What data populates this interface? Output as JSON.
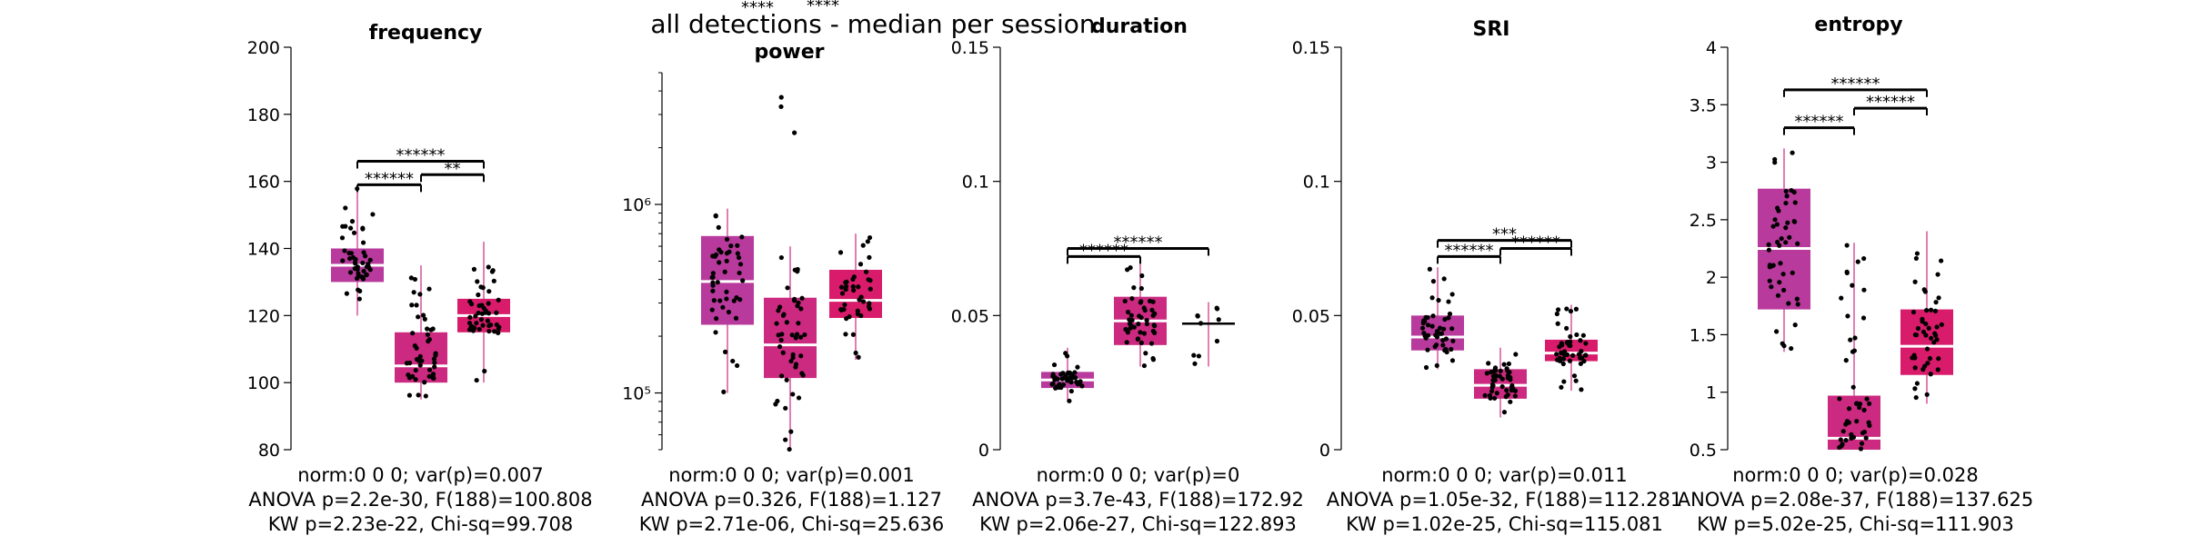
{
  "figure": {
    "suptitle": "all detections - median per session",
    "top_stray_labels": [
      "****",
      "****"
    ]
  },
  "colors": {
    "box_1": "#b83a9c",
    "box_2": "#cb2a80",
    "box_3": "#d81b6a",
    "median_line": "#ffffff",
    "whisker": "#cb2a80",
    "points": "#000000",
    "significance_bar": "#000000"
  },
  "chart_data": [
    {
      "type": "box",
      "title": "frequency",
      "yscale": "linear",
      "ylim": [
        80,
        200
      ],
      "yticks": [
        80,
        100,
        120,
        140,
        160,
        180,
        200
      ],
      "ytick_labels": [
        "80",
        "100",
        "120",
        "140",
        "160",
        "180",
        "200"
      ],
      "boxes": [
        {
          "q1": 130,
          "median": 135,
          "q3": 140,
          "whisker_low": 120,
          "whisker_high": 158,
          "n_points": 46
        },
        {
          "q1": 100,
          "median": 105,
          "q3": 115,
          "whisker_low": 95,
          "whisker_high": 135,
          "n_points": 46
        },
        {
          "q1": 115,
          "median": 120,
          "q3": 125,
          "whisker_low": 100,
          "whisker_high": 142,
          "n_points": 46
        }
      ],
      "significance": [
        {
          "from": 0,
          "to": 1,
          "label": "******",
          "y": 159
        },
        {
          "from": 0,
          "to": 2,
          "label": "******",
          "y": 166
        },
        {
          "from": 1,
          "to": 2,
          "label": "**",
          "y": 162
        }
      ],
      "stats": [
        "norm:0  0  0; var(p)=0.007",
        "ANOVA p=2.2e-30, F(188)=100.808",
        "KW p=2.23e-22, Chi-sq=99.708"
      ]
    },
    {
      "type": "box",
      "title": "power",
      "yscale": "log",
      "ylim": [
        50000,
        5000000
      ],
      "yticks": [
        100000,
        1000000
      ],
      "ytick_labels": [
        "10⁵",
        "10⁶"
      ],
      "boxes": [
        {
          "q1": 230000,
          "median": 390000,
          "q3": 680000,
          "whisker_low": 100000,
          "whisker_high": 950000,
          "n_points": 46
        },
        {
          "q1": 120000,
          "median": 180000,
          "q3": 320000,
          "whisker_low": 50000,
          "whisker_high": 600000,
          "n_points": 46,
          "outliers": [
            2400000,
            3300000,
            3700000
          ]
        },
        {
          "q1": 250000,
          "median": 310000,
          "q3": 450000,
          "whisker_low": 150000,
          "whisker_high": 700000,
          "n_points": 40
        }
      ],
      "significance": [],
      "stats": [
        "norm:0  0  0; var(p)=0.001",
        "ANOVA p=0.326, F(188)=1.127",
        "KW p=2.71e-06, Chi-sq=25.636"
      ]
    },
    {
      "type": "box",
      "title": "duration",
      "yscale": "linear",
      "ylim": [
        0,
        0.15
      ],
      "yticks": [
        0,
        0.05,
        0.1,
        0.15
      ],
      "ytick_labels": [
        "0",
        "0.05",
        "0.1",
        "0.15"
      ],
      "boxes": [
        {
          "q1": 0.023,
          "median": 0.026,
          "q3": 0.029,
          "whisker_low": 0.018,
          "whisker_high": 0.038,
          "n_points": 46
        },
        {
          "q1": 0.039,
          "median": 0.048,
          "q3": 0.057,
          "whisker_low": 0.031,
          "whisker_high": 0.07,
          "n_points": 46
        },
        {
          "q1": null,
          "median": 0.047,
          "q3": null,
          "whisker_low": 0.031,
          "whisker_high": 0.055,
          "n_points": 10
        }
      ],
      "significance": [
        {
          "from": 0,
          "to": 1,
          "label": "******",
          "y": 0.072
        },
        {
          "from": 0,
          "to": 2,
          "label": "******",
          "y": 0.075
        }
      ],
      "stats": [
        "norm:0  0  0; var(p)=0",
        "ANOVA p=3.7e-43, F(188)=172.92",
        "KW p=2.06e-27, Chi-sq=122.893"
      ]
    },
    {
      "type": "box",
      "title": "SRI",
      "yscale": "linear",
      "ylim": [
        0,
        0.15
      ],
      "yticks": [
        0,
        0.05,
        0.1,
        0.15
      ],
      "ytick_labels": [
        "0",
        "0.05",
        "0.1",
        "0.15"
      ],
      "boxes": [
        {
          "q1": 0.037,
          "median": 0.042,
          "q3": 0.05,
          "whisker_low": 0.03,
          "whisker_high": 0.068,
          "n_points": 46
        },
        {
          "q1": 0.019,
          "median": 0.024,
          "q3": 0.03,
          "whisker_low": 0.012,
          "whisker_high": 0.038,
          "n_points": 46
        },
        {
          "q1": 0.033,
          "median": 0.036,
          "q3": 0.041,
          "whisker_low": 0.022,
          "whisker_high": 0.054,
          "n_points": 46
        }
      ],
      "significance": [
        {
          "from": 0,
          "to": 1,
          "label": "******",
          "y": 0.072
        },
        {
          "from": 0,
          "to": 2,
          "label": "***",
          "y": 0.078
        },
        {
          "from": 1,
          "to": 2,
          "label": "******",
          "y": 0.075
        }
      ],
      "stats": [
        "norm:0  0  0; var(p)=0.011",
        "ANOVA p=1.05e-32, F(188)=112.281",
        "KW p=1.02e-25, Chi-sq=115.081"
      ]
    },
    {
      "type": "box",
      "title": "entropy",
      "yscale": "linear",
      "ylim": [
        0.5,
        4
      ],
      "yticks": [
        0.5,
        1,
        1.5,
        2,
        2.5,
        3,
        3.5,
        4
      ],
      "ytick_labels": [
        "0.5",
        "1",
        "1.5",
        "2",
        "2.5",
        "3",
        "3.5",
        "4"
      ],
      "boxes": [
        {
          "q1": 1.72,
          "median": 2.25,
          "q3": 2.77,
          "whisker_low": 1.35,
          "whisker_high": 3.12,
          "n_points": 46
        },
        {
          "q1": 0.5,
          "median": 0.6,
          "q3": 0.97,
          "whisker_low": 0.5,
          "whisker_high": 2.3,
          "n_points": 46
        },
        {
          "q1": 1.15,
          "median": 1.4,
          "q3": 1.72,
          "whisker_low": 0.9,
          "whisker_high": 2.4,
          "n_points": 46
        }
      ],
      "significance": [
        {
          "from": 0,
          "to": 1,
          "label": "******",
          "y": 3.3
        },
        {
          "from": 0,
          "to": 2,
          "label": "******",
          "y": 3.63
        },
        {
          "from": 1,
          "to": 2,
          "label": "******",
          "y": 3.47
        }
      ],
      "stats": [
        "norm:0  0  0; var(p)=0.028",
        "ANOVA p=2.08e-37, F(188)=137.625",
        "KW p=5.02e-25, Chi-sq=111.903"
      ]
    }
  ]
}
